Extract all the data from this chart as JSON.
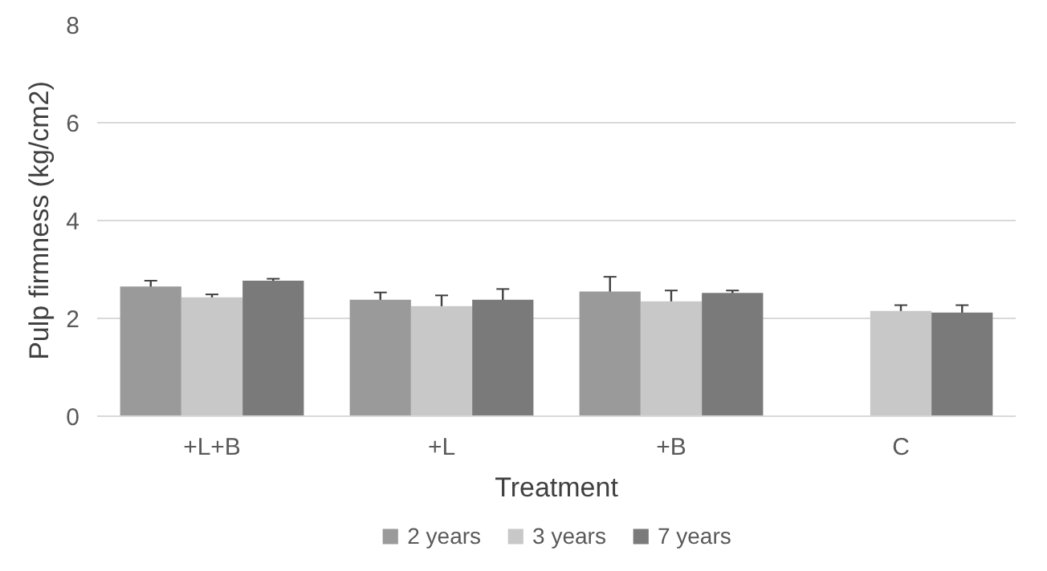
{
  "chart_data": {
    "type": "bar",
    "xlabel": "Treatment",
    "ylabel": "Pulp firmness (kg/cm2)",
    "categories": [
      "+L+B",
      "+L",
      "+B",
      "C"
    ],
    "series": [
      {
        "name": "2 years",
        "color": "#9a9a9a",
        "values": [
          2.65,
          2.38,
          2.55,
          null
        ],
        "errors": [
          0.12,
          0.15,
          0.3,
          null
        ]
      },
      {
        "name": "3 years",
        "color": "#c8c8c8",
        "values": [
          2.43,
          2.25,
          2.35,
          2.15
        ],
        "errors": [
          0.06,
          0.22,
          0.22,
          0.12
        ]
      },
      {
        "name": "7 years",
        "color": "#7a7a7a",
        "values": [
          2.77,
          2.38,
          2.52,
          2.12
        ],
        "errors": [
          0.04,
          0.22,
          0.05,
          0.15
        ]
      }
    ],
    "ylim": [
      0,
      8
    ],
    "yticks": [
      0,
      2,
      4,
      6,
      8
    ],
    "grid": "y",
    "legend": "bottom"
  }
}
